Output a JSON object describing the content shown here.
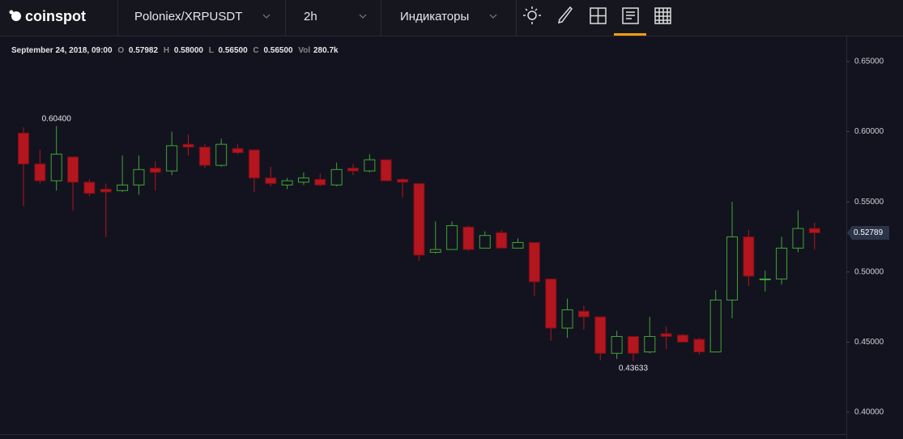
{
  "toolbar": {
    "logo": "coinspot",
    "pair": "Poloniex/XRPUSDT",
    "interval": "2h",
    "indicators": "Индикаторы"
  },
  "legend": {
    "date": "September 24, 2018, 09:00",
    "o_label": "O",
    "o": "0.57982",
    "h_label": "H",
    "h": "0.58000",
    "l_label": "L",
    "l": "0.56500",
    "c_label": "C",
    "c": "0.56500",
    "vol_label": "Vol",
    "vol": "280.7k"
  },
  "chart_data": {
    "type": "candlestick",
    "up_color": "#3fa535",
    "down_color": "#b3161f",
    "open": [
      0.599,
      0.577,
      0.565,
      0.582,
      0.564,
      0.559,
      0.558,
      0.562,
      0.574,
      0.572,
      0.591,
      0.589,
      0.576,
      0.588,
      0.587,
      0.567,
      0.562,
      0.564,
      0.566,
      0.562,
      0.574,
      0.572,
      0.58,
      0.566,
      0.563,
      0.514,
      0.516,
      0.532,
      0.517,
      0.528,
      0.517,
      0.521,
      0.495,
      0.46,
      0.472,
      0.468,
      0.442,
      0.454,
      0.443,
      0.456,
      0.455,
      0.452,
      0.443,
      0.48,
      0.525,
      0.495,
      0.495,
      0.517,
      0.531
    ],
    "high": [
      0.603,
      0.587,
      0.604,
      0.582,
      0.566,
      0.563,
      0.583,
      0.583,
      0.579,
      0.6,
      0.598,
      0.591,
      0.595,
      0.591,
      0.587,
      0.575,
      0.567,
      0.571,
      0.57,
      0.578,
      0.577,
      0.584,
      0.58,
      0.567,
      0.563,
      0.536,
      0.536,
      0.533,
      0.529,
      0.53,
      0.524,
      0.521,
      0.495,
      0.481,
      0.476,
      0.468,
      0.458,
      0.454,
      0.468,
      0.461,
      0.456,
      0.453,
      0.487,
      0.55,
      0.53,
      0.501,
      0.525,
      0.544,
      0.535
    ],
    "low": [
      0.547,
      0.563,
      0.558,
      0.544,
      0.554,
      0.525,
      0.557,
      0.555,
      0.558,
      0.569,
      0.583,
      0.574,
      0.575,
      0.584,
      0.557,
      0.561,
      0.559,
      0.562,
      0.561,
      0.561,
      0.569,
      0.571,
      0.565,
      0.553,
      0.508,
      0.513,
      0.516,
      0.515,
      0.517,
      0.517,
      0.517,
      0.483,
      0.451,
      0.453,
      0.459,
      0.437,
      0.438,
      0.43633,
      0.442,
      0.445,
      0.45,
      0.441,
      0.443,
      0.467,
      0.49,
      0.486,
      0.491,
      0.514,
      0.516
    ],
    "close": [
      0.577,
      0.565,
      0.584,
      0.564,
      0.556,
      0.557,
      0.562,
      0.573,
      0.571,
      0.59,
      0.589,
      0.576,
      0.591,
      0.585,
      0.567,
      0.563,
      0.565,
      0.567,
      0.562,
      0.573,
      0.572,
      0.58,
      0.565,
      0.564,
      0.512,
      0.516,
      0.533,
      0.516,
      0.526,
      0.517,
      0.521,
      0.493,
      0.46,
      0.473,
      0.468,
      0.442,
      0.454,
      0.442,
      0.454,
      0.454,
      0.45,
      0.443,
      0.48,
      0.525,
      0.497,
      0.495,
      0.517,
      0.531,
      0.52789
    ],
    "ylim": [
      0.3844,
      0.6621
    ],
    "yticks": [
      {
        "value": 0.4,
        "label": "0.40000"
      },
      {
        "value": 0.45,
        "label": "0.45000"
      },
      {
        "value": 0.5,
        "label": "0.50000"
      },
      {
        "value": 0.55,
        "label": "0.55000"
      },
      {
        "value": 0.6,
        "label": "0.60000"
      },
      {
        "value": 0.65,
        "label": "0.65000"
      }
    ],
    "grid": false,
    "annotations": [
      {
        "value": 0.604,
        "label": "0.60400",
        "at": "high"
      },
      {
        "value": 0.43633,
        "label": "0.43633",
        "at": "low"
      }
    ],
    "last_price": {
      "value": 0.52789,
      "label": "0.52789"
    }
  }
}
